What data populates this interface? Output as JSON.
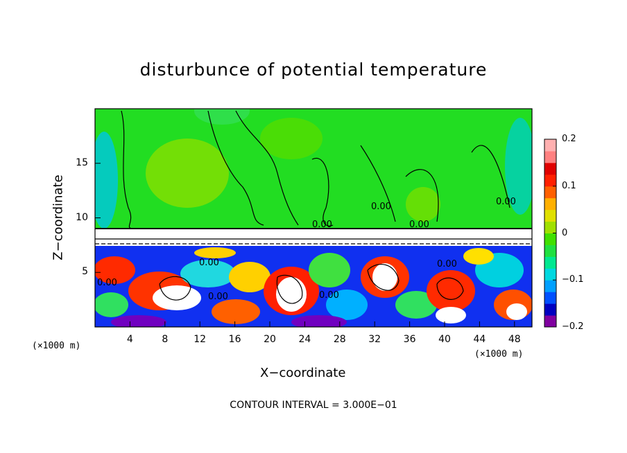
{
  "chart_data": {
    "type": "heatmap",
    "title": "disturbunce of potential temperature",
    "xlabel": "X−coordinate",
    "ylabel": "Z−coordinate",
    "x_unit": "(×1000 m)",
    "z_unit": "(×1000 m)",
    "xlim": [
      0,
      50
    ],
    "ylim": [
      0,
      20
    ],
    "x_ticks": [
      "4",
      "8",
      "12",
      "16",
      "20",
      "24",
      "28",
      "32",
      "36",
      "40",
      "44",
      "48"
    ],
    "y_ticks": [
      "5",
      "10",
      "15"
    ],
    "colorbar": {
      "range": [
        -0.2,
        0.2
      ],
      "tick_labels": [
        "0.2",
        "0.1",
        "0",
        "−0.1",
        "−0.2"
      ],
      "colors": [
        "#8000a0",
        "#0000c0",
        "#0050ff",
        "#00a0ff",
        "#00d8e0",
        "#00e890",
        "#20e040",
        "#40e000",
        "#a0e000",
        "#e0e000",
        "#ffb000",
        "#ff6000",
        "#ff2000",
        "#e00000",
        "#ff8080",
        "#ffb0b0"
      ]
    },
    "contour_labels": [
      "0.00",
      "0.00",
      "0.00",
      "0.00",
      "0.00",
      "0.00",
      "0.00",
      "0.00",
      "0.00"
    ],
    "note": "CONTOUR INTERVAL = 3.000E−01"
  }
}
